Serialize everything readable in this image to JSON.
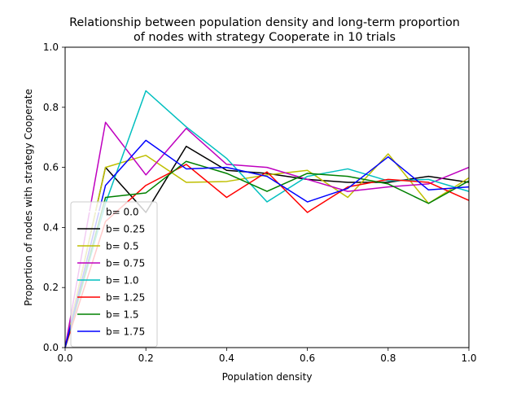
{
  "chart_data": {
    "type": "line",
    "title_line1": "Relationship between population density and long-term proportion",
    "title_line2": "of nodes with strategy Cooperate in 10 trials",
    "xlabel": "Population density",
    "ylabel": "Proportion of nodes with strategy Cooperate",
    "xlim": [
      0.0,
      1.0
    ],
    "ylim": [
      0.0,
      1.0
    ],
    "xticks": [
      "0.0",
      "0.2",
      "0.4",
      "0.6",
      "0.8",
      "1.0"
    ],
    "yticks": [
      "0.0",
      "0.2",
      "0.4",
      "0.6",
      "0.8",
      "1.0"
    ],
    "grid": false,
    "legend_position": "lower-left",
    "x": [
      0.0,
      0.1,
      0.2,
      0.3,
      0.4,
      0.5,
      0.6,
      0.7,
      0.8,
      0.9,
      1.0
    ],
    "series": [
      {
        "name": "b= 0.0",
        "color": "#ffffff",
        "values": [
          0.0,
          0.6,
          0.64,
          0.55,
          0.55,
          0.58,
          0.59,
          0.5,
          0.64,
          0.49,
          0.55
        ]
      },
      {
        "name": "b= 0.25",
        "color": "#000000",
        "values": [
          0.0,
          0.6,
          0.45,
          0.67,
          0.59,
          0.58,
          0.56,
          0.55,
          0.55,
          0.57,
          0.55
        ]
      },
      {
        "name": "b= 0.5",
        "color": "#bfbf00",
        "values": [
          0.0,
          0.6,
          0.64,
          0.55,
          0.553,
          0.575,
          0.59,
          0.5,
          0.645,
          0.48,
          0.565
        ]
      },
      {
        "name": "b= 0.75",
        "color": "#bf00bf",
        "values": [
          0.0,
          0.75,
          0.575,
          0.73,
          0.61,
          0.6,
          0.56,
          0.52,
          0.535,
          0.545,
          0.6
        ]
      },
      {
        "name": "b= 1.0",
        "color": "#00bfbf",
        "values": [
          0.0,
          0.48,
          0.855,
          0.735,
          0.63,
          0.485,
          0.57,
          0.595,
          0.555,
          0.56,
          0.52
        ]
      },
      {
        "name": "b= 1.25",
        "color": "#ff0000",
        "values": [
          0.0,
          0.42,
          0.54,
          0.61,
          0.5,
          0.585,
          0.45,
          0.535,
          0.56,
          0.55,
          0.49
        ]
      },
      {
        "name": "b= 1.5",
        "color": "#008000",
        "values": [
          0.0,
          0.5,
          0.515,
          0.62,
          0.58,
          0.52,
          0.58,
          0.57,
          0.545,
          0.48,
          0.555
        ]
      },
      {
        "name": "b= 1.75",
        "color": "#0000ff",
        "values": [
          0.0,
          0.54,
          0.69,
          0.595,
          0.6,
          0.57,
          0.485,
          0.53,
          0.635,
          0.525,
          0.535
        ]
      }
    ]
  }
}
